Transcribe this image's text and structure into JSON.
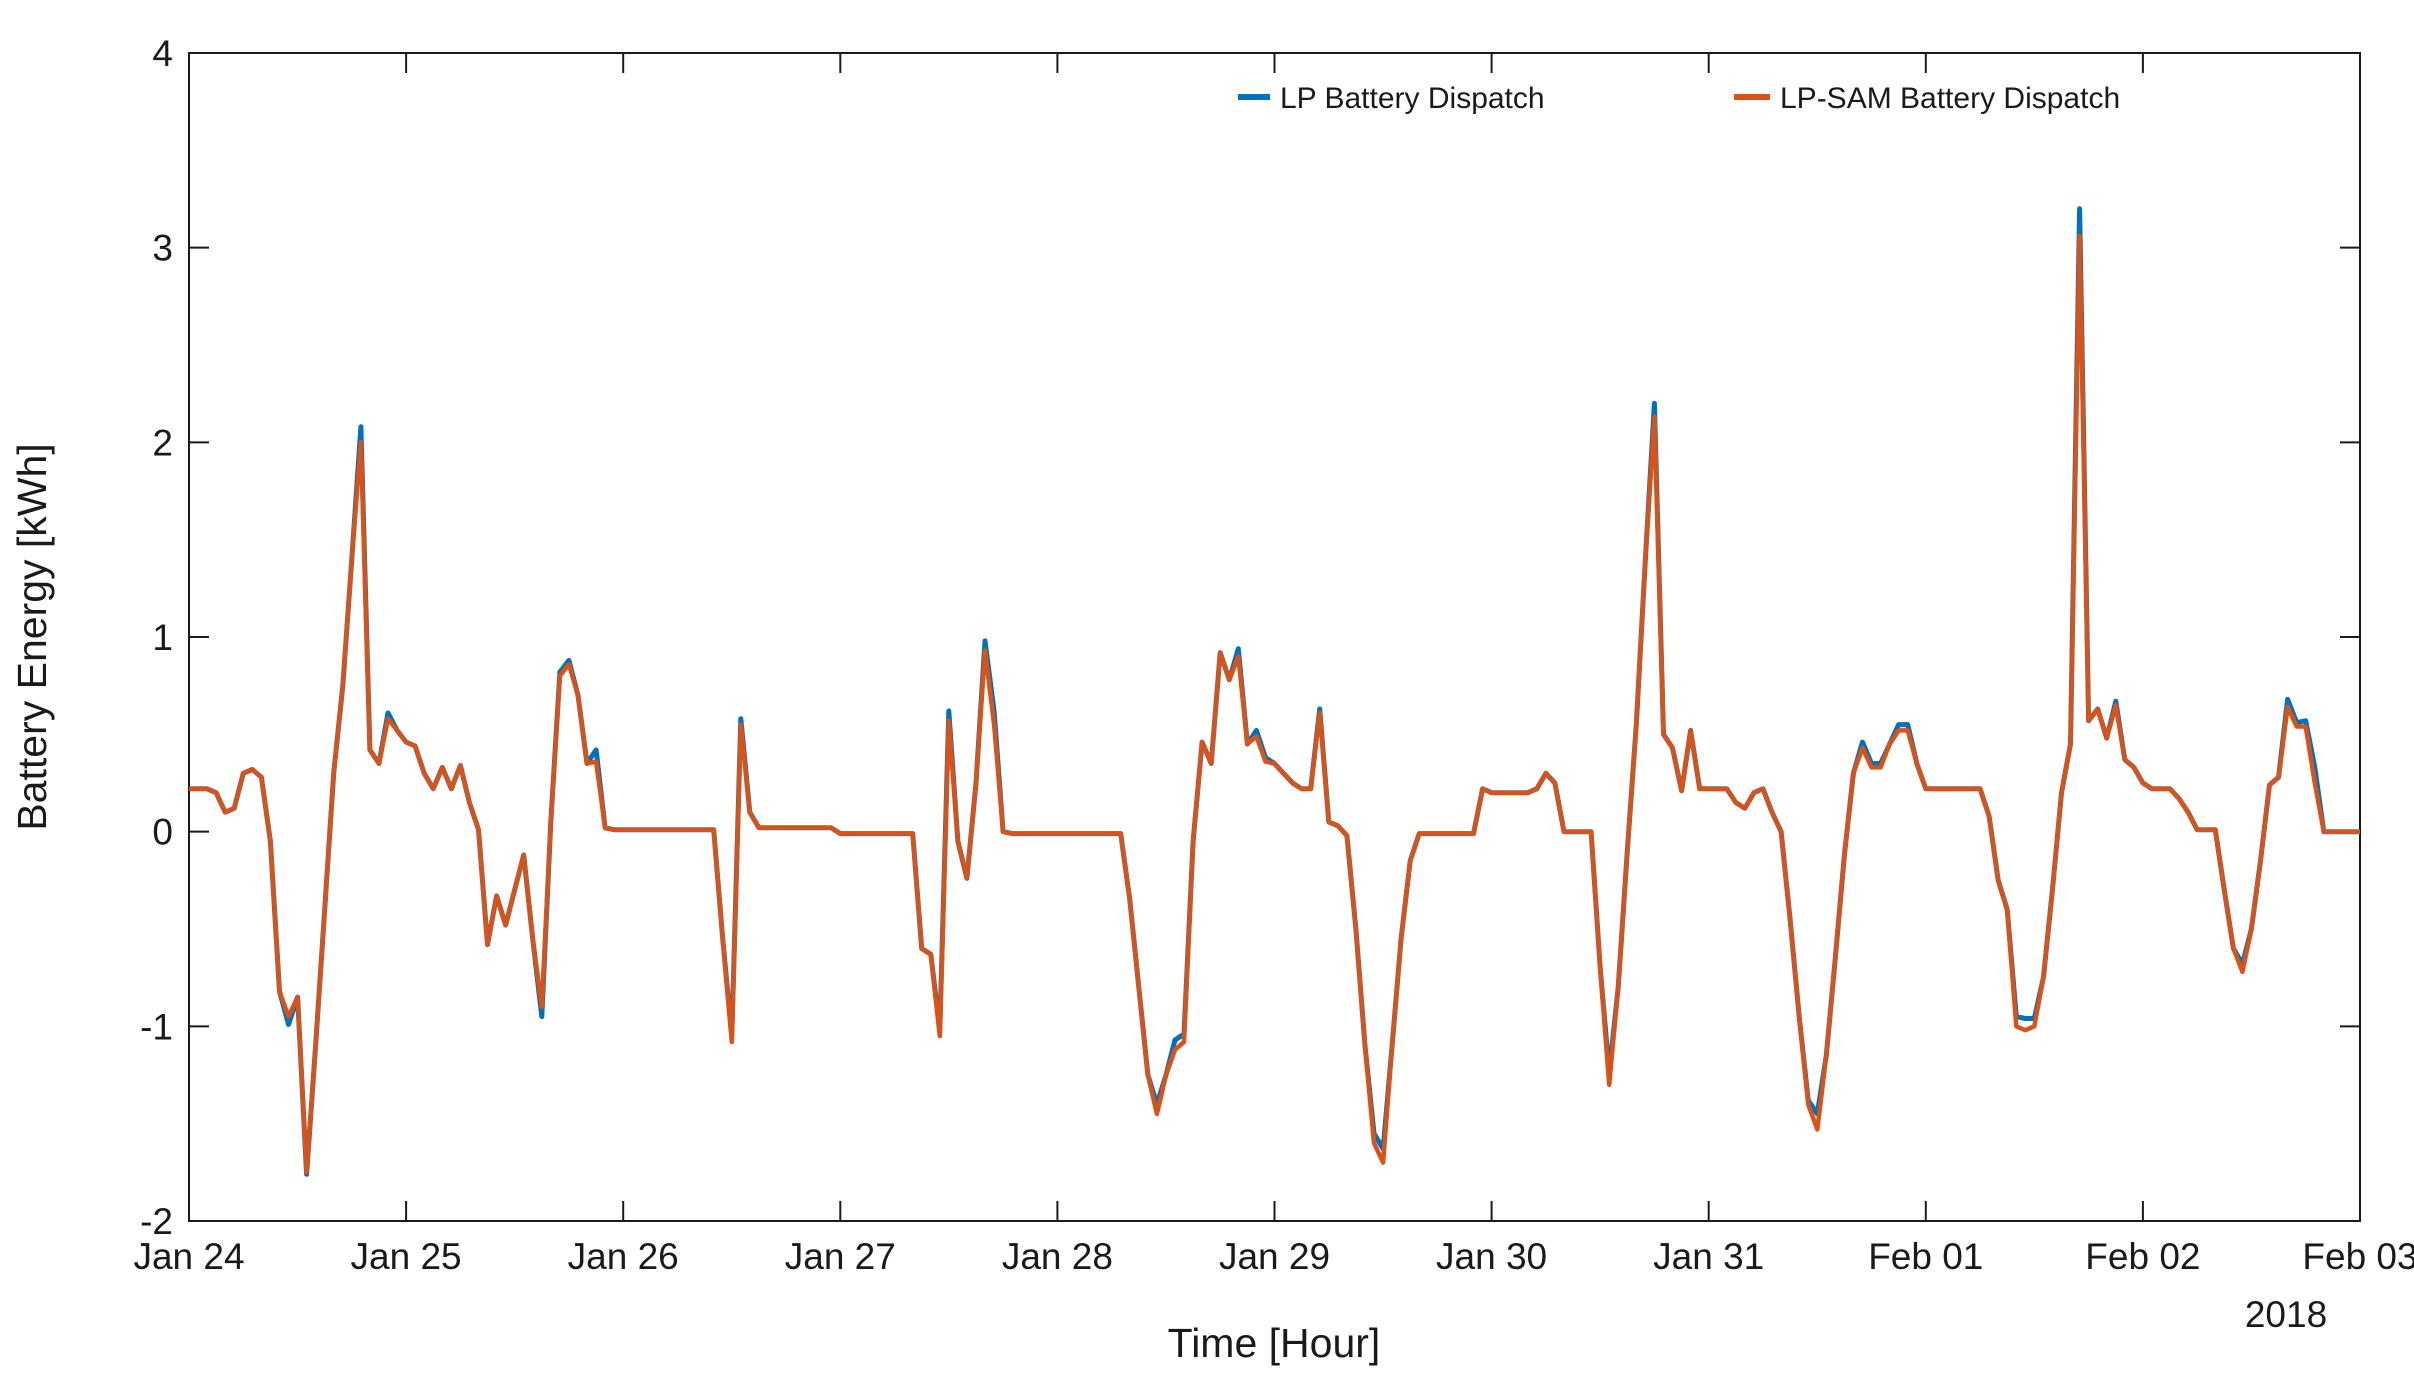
{
  "chart_data": {
    "type": "line",
    "title": "",
    "xlabel": "Time [Hour]",
    "ylabel": "Battery Energy [kWh]",
    "year_label": "2018",
    "x_tick_labels": [
      "Jan 24",
      "Jan 25",
      "Jan 26",
      "Jan 27",
      "Jan 28",
      "Jan 29",
      "Jan 30",
      "Jan 31",
      "Feb 01",
      "Feb 02",
      "Feb 03"
    ],
    "y_ticks": [
      -2,
      -1,
      0,
      1,
      2,
      3,
      4
    ],
    "ylim": [
      -2,
      4
    ],
    "x_range_hours": [
      0,
      240
    ],
    "hours_per_day": 24,
    "grid": false,
    "legend_position": "top-inside-horizontal",
    "axis_color": "#1a1a1a",
    "background": "#ffffff",
    "legend": [
      {
        "label": "LP Battery Dispatch",
        "color": "#0072BD"
      },
      {
        "label": "LP-SAM Battery Dispatch",
        "color": "#D95319"
      }
    ],
    "series": [
      {
        "name": "LP Battery Dispatch",
        "color": "#0072BD",
        "linewidth": 5,
        "values": [
          0.22,
          0.22,
          0.22,
          0.2,
          0.1,
          0.12,
          0.3,
          0.32,
          0.28,
          -0.05,
          -0.82,
          -0.99,
          -0.85,
          -1.76,
          -1.1,
          -0.4,
          0.3,
          0.75,
          1.4,
          2.08,
          0.42,
          0.35,
          0.61,
          0.52,
          0.46,
          0.44,
          0.3,
          0.22,
          0.33,
          0.22,
          0.34,
          0.15,
          0.01,
          -0.58,
          -0.33,
          -0.48,
          -0.3,
          -0.12,
          -0.55,
          -0.95,
          0.05,
          0.82,
          0.88,
          0.7,
          0.35,
          0.42,
          0.02,
          0.01,
          0.01,
          0.01,
          0.01,
          0.01,
          0.01,
          0.01,
          0.01,
          0.01,
          0.01,
          0.01,
          0.01,
          -0.55,
          -1.05,
          0.58,
          0.1,
          0.02,
          0.02,
          0.02,
          0.02,
          0.02,
          0.02,
          0.02,
          0.02,
          0.02,
          -0.01,
          -0.01,
          -0.01,
          -0.01,
          -0.01,
          -0.01,
          -0.01,
          -0.01,
          -0.01,
          -0.6,
          -0.63,
          -1.02,
          0.62,
          -0.05,
          -0.24,
          0.25,
          0.98,
          0.62,
          0.0,
          -0.01,
          -0.01,
          -0.01,
          -0.01,
          -0.01,
          -0.01,
          -0.01,
          -0.01,
          -0.01,
          -0.01,
          -0.01,
          -0.01,
          -0.01,
          -0.35,
          -0.8,
          -1.25,
          -1.4,
          -1.25,
          -1.07,
          -1.04,
          -0.05,
          0.46,
          0.35,
          0.92,
          0.78,
          0.94,
          0.45,
          0.52,
          0.38,
          0.35,
          0.3,
          0.25,
          0.22,
          0.22,
          0.63,
          0.05,
          0.03,
          -0.02,
          -0.5,
          -1.1,
          -1.55,
          -1.63,
          -1.1,
          -0.55,
          -0.15,
          -0.01,
          -0.01,
          -0.01,
          -0.01,
          -0.01,
          -0.01,
          -0.01,
          0.22,
          0.2,
          0.2,
          0.2,
          0.2,
          0.2,
          0.22,
          0.3,
          0.25,
          0.0,
          0.0,
          0.0,
          0.0,
          -0.7,
          -1.24,
          -0.8,
          -0.1,
          0.55,
          1.4,
          2.2,
          0.5,
          0.43,
          0.21,
          0.52,
          0.22,
          0.22,
          0.22,
          0.22,
          0.15,
          0.12,
          0.2,
          0.22,
          0.1,
          0.0,
          -0.45,
          -0.95,
          -1.38,
          -1.45,
          -1.15,
          -0.65,
          -0.12,
          0.3,
          0.46,
          0.35,
          0.35,
          0.45,
          0.55,
          0.55,
          0.35,
          0.22,
          0.22,
          0.22,
          0.22,
          0.22,
          0.22,
          0.22,
          0.08,
          -0.25,
          -0.4,
          -0.95,
          -0.96,
          -0.96,
          -0.75,
          -0.3,
          0.2,
          0.45,
          3.2,
          0.57,
          0.63,
          0.48,
          0.67,
          0.37,
          0.33,
          0.25,
          0.22,
          0.22,
          0.22,
          0.17,
          0.1,
          0.01,
          0.01,
          0.01,
          -0.3,
          -0.6,
          -0.68,
          -0.5,
          -0.15,
          0.24,
          0.28,
          0.68,
          0.56,
          0.57,
          0.33,
          0.0,
          0.0,
          0.0,
          0.0,
          0.0
        ]
      },
      {
        "name": "LP-SAM Battery Dispatch",
        "color": "#D95319",
        "linewidth": 4.5,
        "values": [
          0.22,
          0.22,
          0.22,
          0.2,
          0.1,
          0.12,
          0.3,
          0.32,
          0.28,
          -0.05,
          -0.82,
          -0.95,
          -0.85,
          -1.75,
          -1.1,
          -0.4,
          0.3,
          0.75,
          1.4,
          2.0,
          0.42,
          0.35,
          0.58,
          0.52,
          0.46,
          0.44,
          0.3,
          0.22,
          0.33,
          0.22,
          0.34,
          0.15,
          0.01,
          -0.58,
          -0.33,
          -0.48,
          -0.3,
          -0.12,
          -0.55,
          -0.9,
          0.05,
          0.8,
          0.86,
          0.7,
          0.35,
          0.36,
          0.02,
          0.01,
          0.01,
          0.01,
          0.01,
          0.01,
          0.01,
          0.01,
          0.01,
          0.01,
          0.01,
          0.01,
          0.01,
          -0.55,
          -1.08,
          0.55,
          0.1,
          0.02,
          0.02,
          0.02,
          0.02,
          0.02,
          0.02,
          0.02,
          0.02,
          0.02,
          -0.01,
          -0.01,
          -0.01,
          -0.01,
          -0.01,
          -0.01,
          -0.01,
          -0.01,
          -0.01,
          -0.6,
          -0.63,
          -1.05,
          0.57,
          -0.05,
          -0.24,
          0.25,
          0.93,
          0.55,
          0.0,
          -0.01,
          -0.01,
          -0.01,
          -0.01,
          -0.01,
          -0.01,
          -0.01,
          -0.01,
          -0.01,
          -0.01,
          -0.01,
          -0.01,
          -0.01,
          -0.35,
          -0.8,
          -1.25,
          -1.45,
          -1.25,
          -1.12,
          -1.08,
          -0.05,
          0.46,
          0.35,
          0.92,
          0.78,
          0.9,
          0.45,
          0.49,
          0.36,
          0.35,
          0.3,
          0.25,
          0.22,
          0.22,
          0.61,
          0.05,
          0.03,
          -0.02,
          -0.5,
          -1.1,
          -1.6,
          -1.7,
          -1.1,
          -0.55,
          -0.15,
          -0.01,
          -0.01,
          -0.01,
          -0.01,
          -0.01,
          -0.01,
          -0.01,
          0.22,
          0.2,
          0.2,
          0.2,
          0.2,
          0.2,
          0.22,
          0.3,
          0.25,
          0.0,
          0.0,
          0.0,
          0.0,
          -0.7,
          -1.3,
          -0.8,
          -0.1,
          0.55,
          1.4,
          2.13,
          0.5,
          0.43,
          0.21,
          0.52,
          0.22,
          0.22,
          0.22,
          0.22,
          0.15,
          0.12,
          0.2,
          0.22,
          0.1,
          0.0,
          -0.45,
          -0.95,
          -1.4,
          -1.53,
          -1.15,
          -0.65,
          -0.12,
          0.3,
          0.43,
          0.33,
          0.33,
          0.45,
          0.52,
          0.52,
          0.35,
          0.22,
          0.22,
          0.22,
          0.22,
          0.22,
          0.22,
          0.22,
          0.08,
          -0.25,
          -0.4,
          -1.0,
          -1.02,
          -1.0,
          -0.75,
          -0.3,
          0.2,
          0.45,
          3.06,
          0.57,
          0.63,
          0.48,
          0.65,
          0.37,
          0.33,
          0.25,
          0.22,
          0.22,
          0.22,
          0.17,
          0.1,
          0.01,
          0.01,
          0.01,
          -0.3,
          -0.6,
          -0.72,
          -0.5,
          -0.15,
          0.24,
          0.28,
          0.64,
          0.54,
          0.54,
          0.25,
          0.0,
          0.0,
          0.0,
          0.0,
          0.0
        ]
      }
    ]
  }
}
